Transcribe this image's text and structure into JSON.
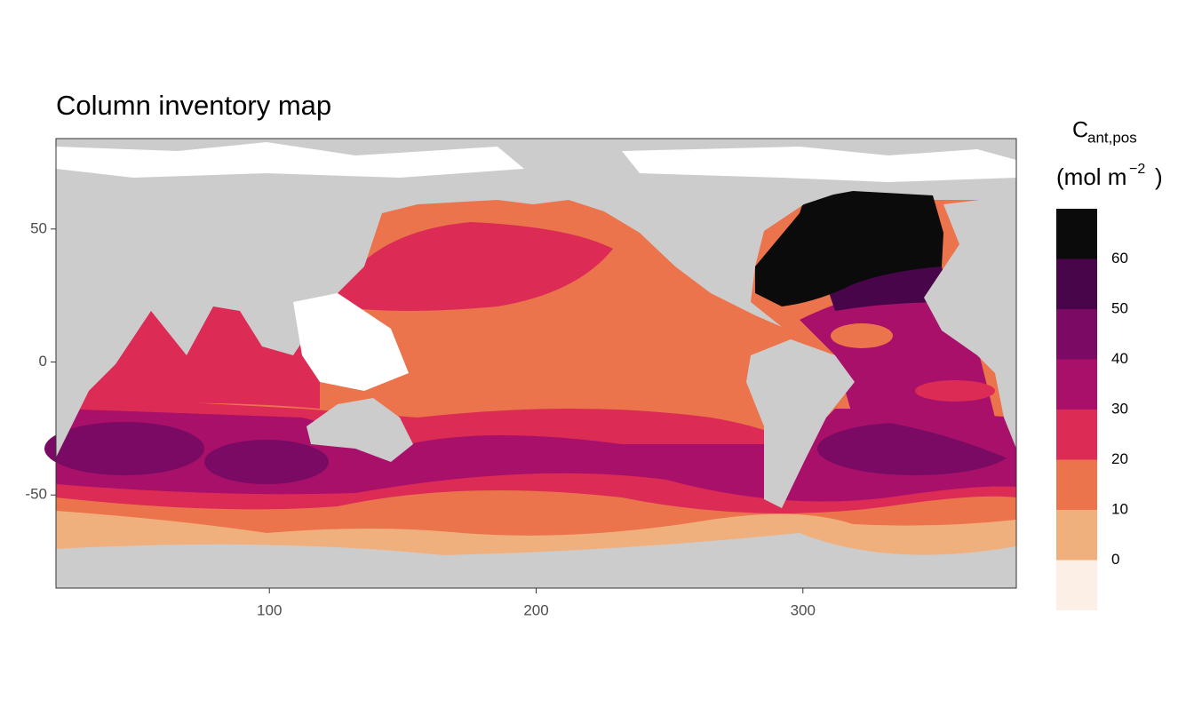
{
  "chart_data": {
    "type": "map",
    "title": "Column inventory map",
    "xlim": [
      20,
      380
    ],
    "ylim": [
      -85,
      84
    ],
    "xticks": [
      100,
      200,
      300
    ],
    "yticks": [
      -50,
      0,
      50
    ],
    "grid": true,
    "legend": {
      "title": "C",
      "title_subscript": "ant,pos",
      "unit": "(mol m",
      "unit_superscript": "−2",
      "unit_close": ")",
      "lim": [
        -10,
        70
      ],
      "breaks": [
        0,
        10,
        20,
        30,
        40,
        50,
        60
      ],
      "colors": [
        "#fcf0e6",
        "#f0b07e",
        "#eb744c",
        "#dc2b55",
        "#a8106a",
        "#7a0a64",
        "#48054a",
        "#0b0b0b"
      ]
    }
  }
}
